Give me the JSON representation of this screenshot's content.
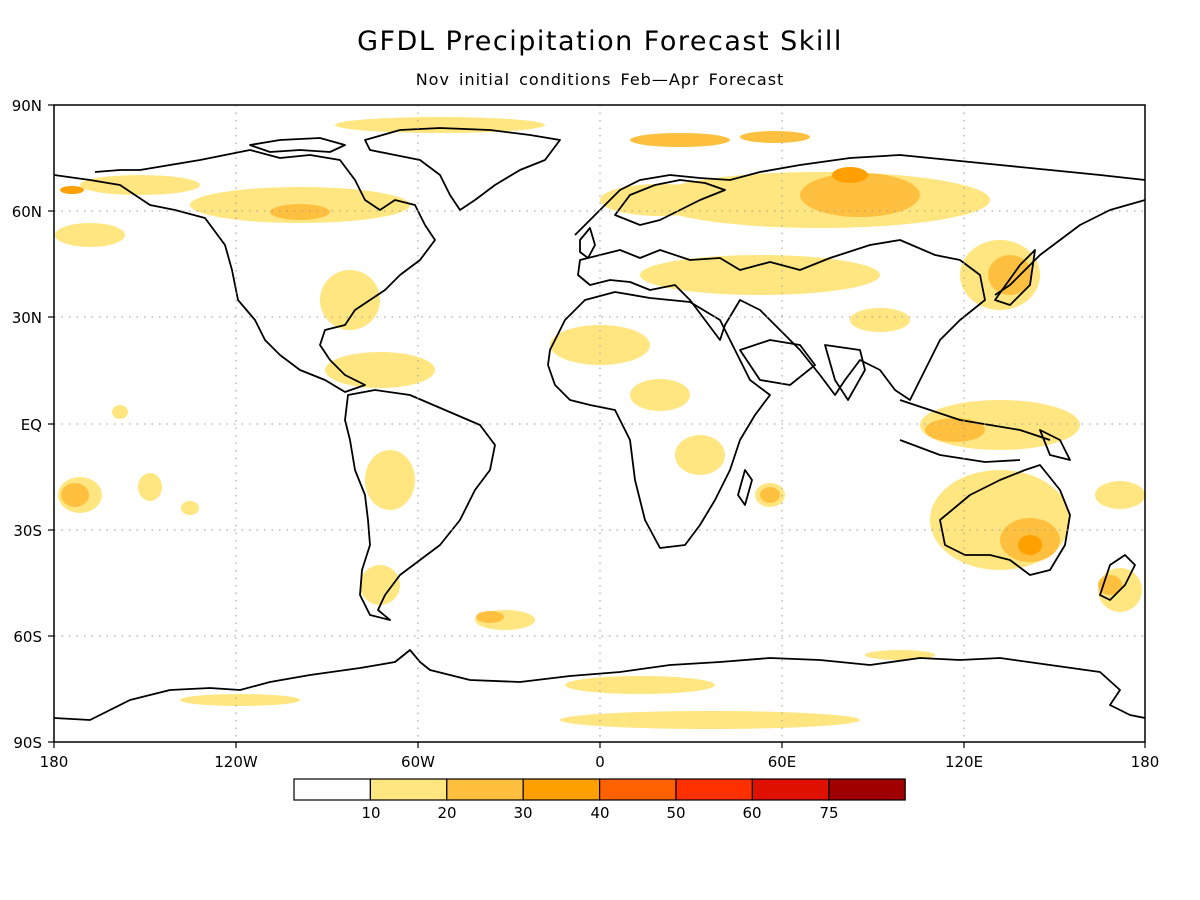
{
  "title": "GFDL Precipitation Forecast Skill",
  "subtitle": "Nov initial conditions   Feb—Apr Forecast",
  "map": {
    "lat_labels": [
      "90N",
      "60N",
      "30N",
      "EQ",
      "30S",
      "60S",
      "90S"
    ],
    "lon_labels": [
      "180",
      "120W",
      "60W",
      "0",
      "60E",
      "120E",
      "180"
    ],
    "grid": "dotted"
  },
  "legend": {
    "colors": [
      "#ffffff",
      "#ffe680",
      "#ffc040",
      "#ffa000",
      "#ff6000",
      "#ff3000",
      "#e01000",
      "#a00000"
    ],
    "labels": [
      "10",
      "20",
      "30",
      "40",
      "50",
      "60",
      "75"
    ]
  }
}
